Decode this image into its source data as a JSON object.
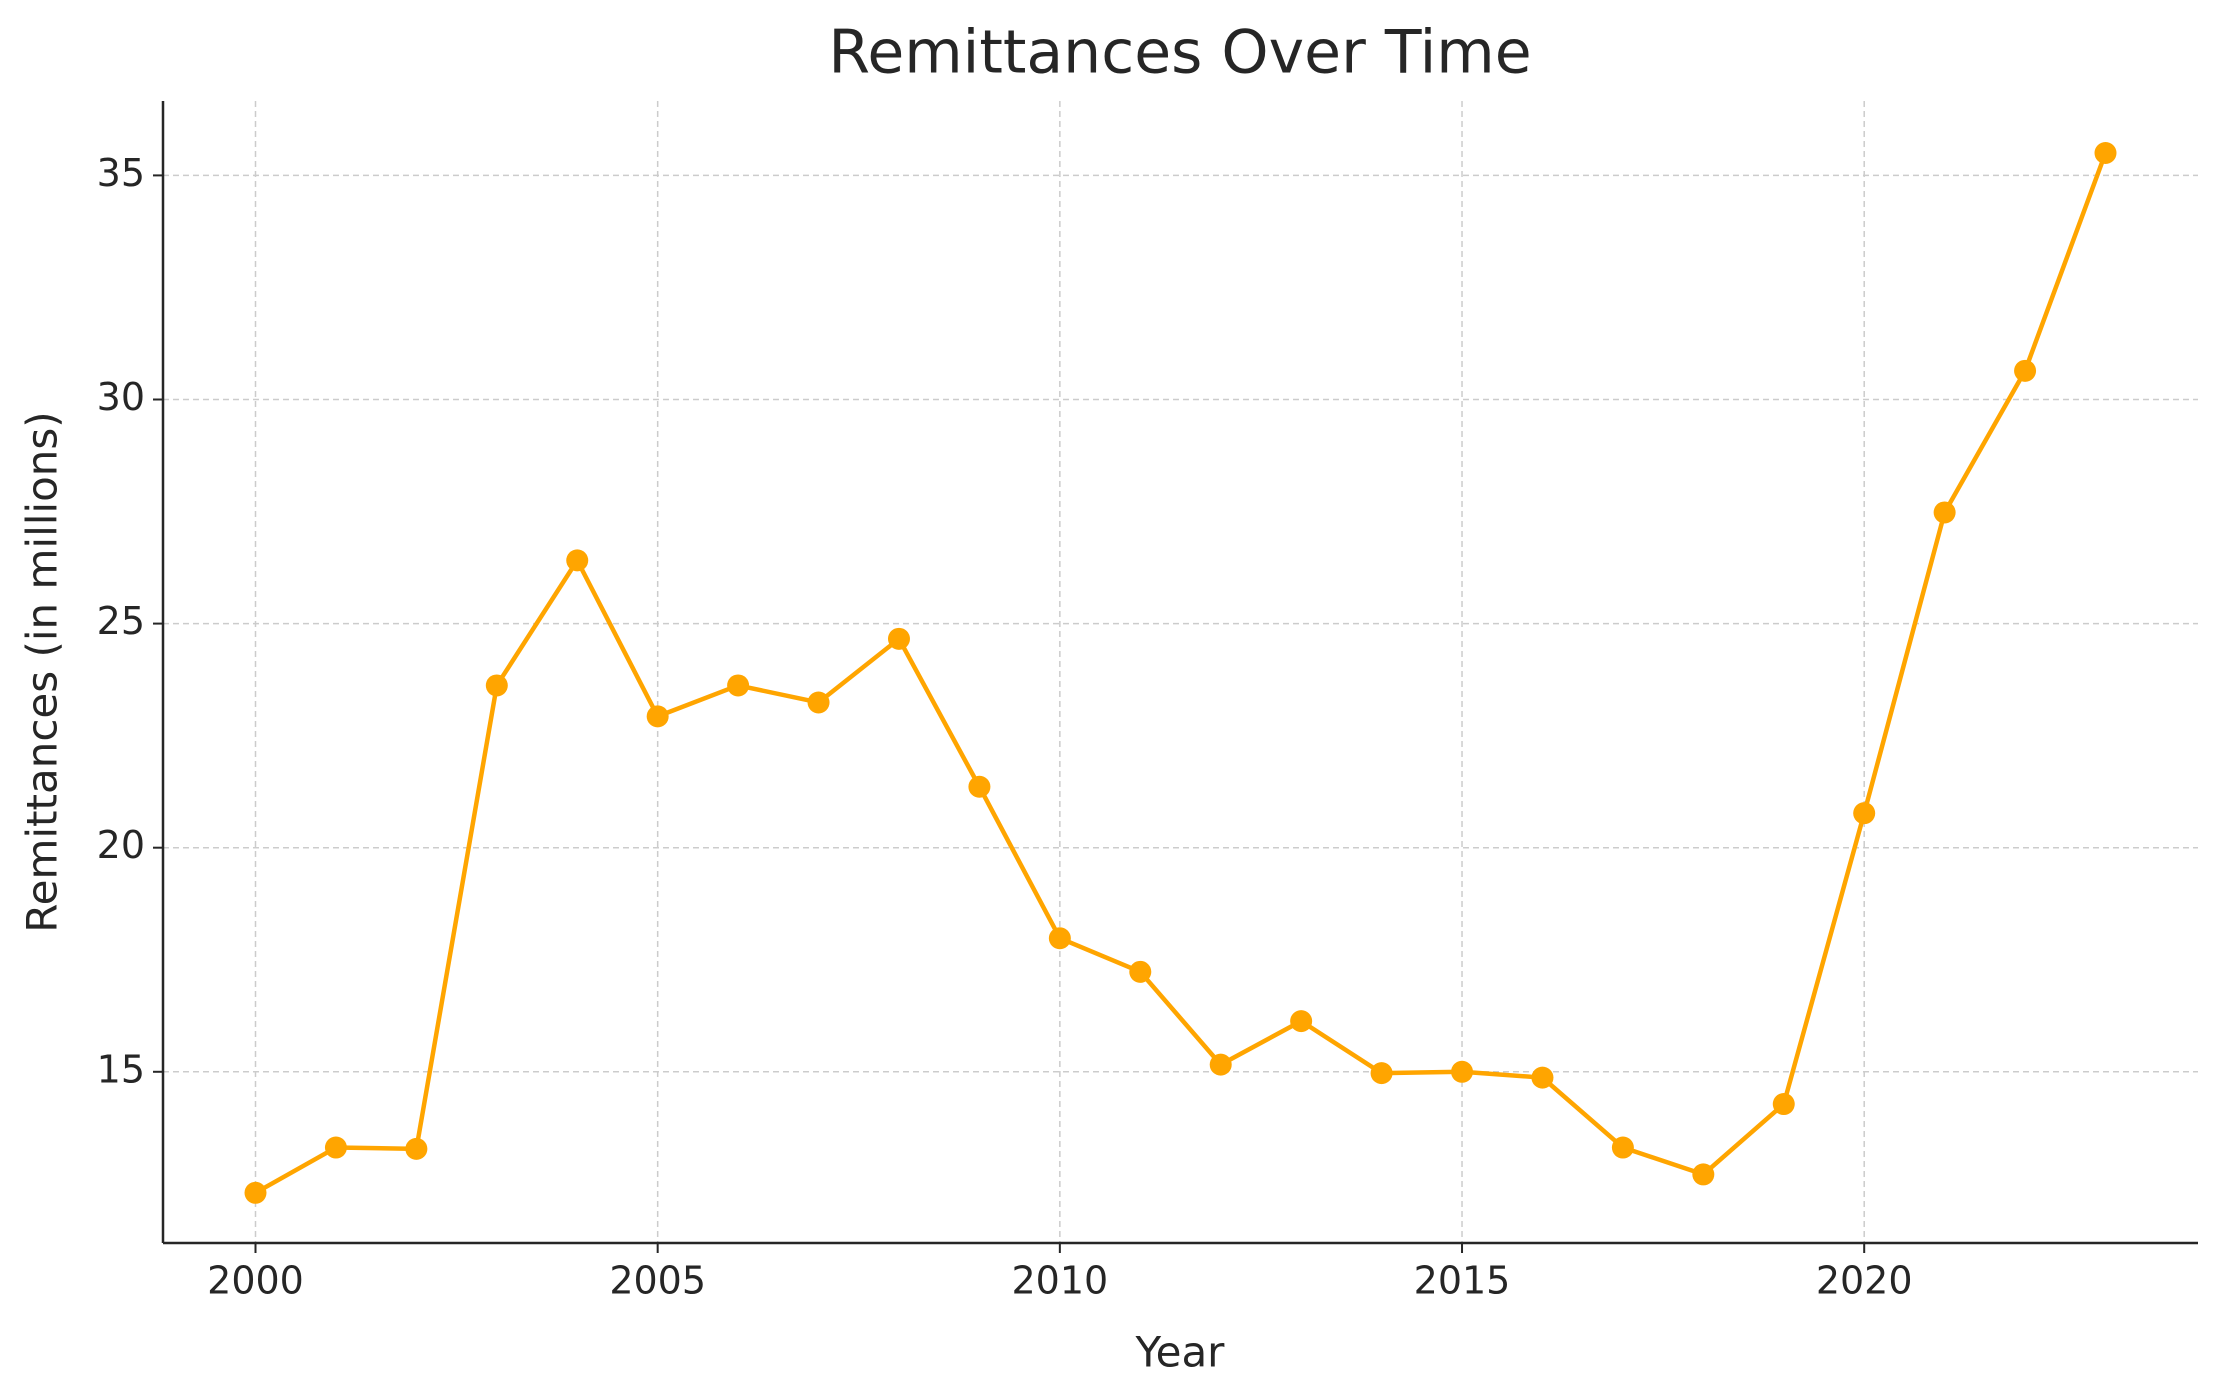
{
  "chart_data": {
    "type": "line",
    "title": "Remittances Over Time",
    "x_label": "Year",
    "y_label": "Remittances (in millions)",
    "x": [
      2000,
      2001,
      2002,
      2003,
      2004,
      2005,
      2006,
      2007,
      2008,
      2009,
      2010,
      2011,
      2012,
      2013,
      2014,
      2015,
      2016,
      2017,
      2018,
      2019,
      2020,
      2021,
      2022,
      2023
    ],
    "series": [
      {
        "name": "Remittances",
        "color": "#ffa500",
        "values": [
          12.3,
          13.31,
          13.28,
          23.62,
          26.41,
          22.93,
          23.62,
          23.24,
          24.66,
          21.36,
          17.98,
          17.23,
          15.16,
          16.13,
          14.97,
          15.0,
          14.87,
          13.31,
          12.71,
          14.28,
          20.77,
          27.48,
          30.64,
          35.5
        ]
      }
    ],
    "xlim": [
      1998.85,
      2024.15
    ],
    "ylim": [
      11.18,
      36.66
    ],
    "xticks": [
      2000,
      2005,
      2010,
      2015,
      2020
    ],
    "yticks": [
      15,
      20,
      25,
      30,
      35
    ],
    "grid": true,
    "markers": true
  }
}
